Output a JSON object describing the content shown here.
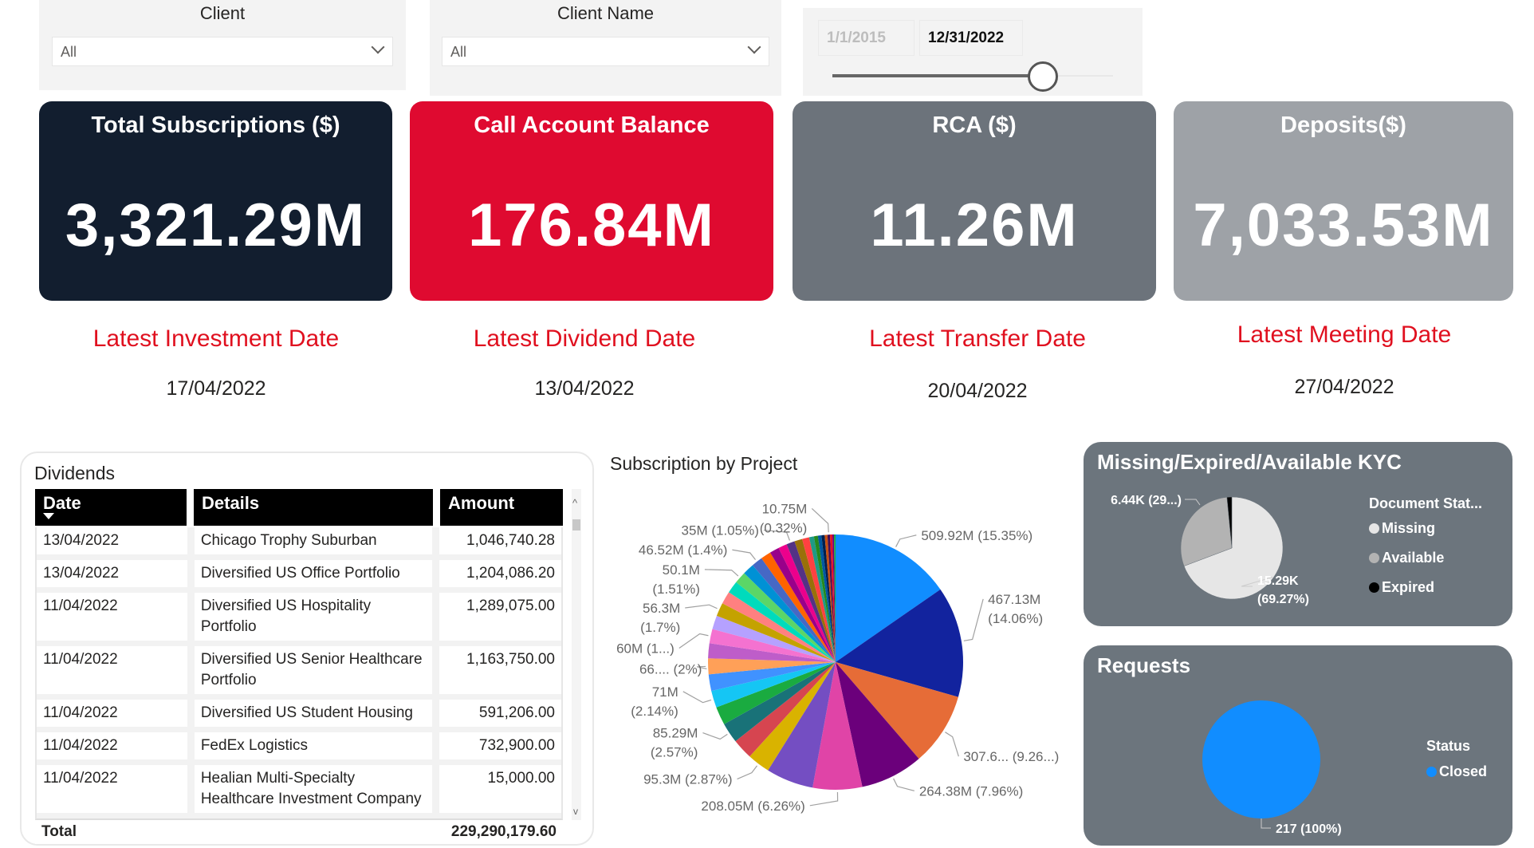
{
  "filters": {
    "client": {
      "label": "Client",
      "value": "All"
    },
    "client_name": {
      "label": "Client Name",
      "value": "All"
    },
    "date_range": {
      "start": "1/1/2015",
      "end": "12/31/2022",
      "slider_position_fraction": 0.75
    }
  },
  "kpis": [
    {
      "title": "Total Subscriptions ($)",
      "value": "3,321.29M",
      "color": "#121E2F"
    },
    {
      "title": "Call Account Balance",
      "value": "176.84M",
      "color": "#DF0A30"
    },
    {
      "title": "RCA ($)",
      "value": "11.26M",
      "color": "#6C737B"
    },
    {
      "title": "Deposits($)",
      "value": "7,033.53M",
      "color": "#9EA2A7"
    }
  ],
  "dates": [
    {
      "label": "Latest Investment Date",
      "value": "17/04/2022"
    },
    {
      "label": "Latest Dividend Date",
      "value": "13/04/2022"
    },
    {
      "label": "Latest Transfer Date",
      "value": "20/04/2022"
    },
    {
      "label": "Latest Meeting Date",
      "value": "27/04/2022"
    }
  ],
  "dividends": {
    "title": "Dividends",
    "columns": [
      "Date",
      "Details",
      "Amount"
    ],
    "rows": [
      [
        "13/04/2022",
        "Chicago Trophy Suburban",
        "1,046,740.28"
      ],
      [
        "13/04/2022",
        "Diversified US Office Portfolio",
        "1,204,086.20"
      ],
      [
        "11/04/2022",
        "Diversified US Hospitality Portfolio",
        "1,289,075.00"
      ],
      [
        "11/04/2022",
        "Diversified US Senior Healthcare Portfolio",
        "1,163,750.00"
      ],
      [
        "11/04/2022",
        "Diversified US Student Housing",
        "591,206.00"
      ],
      [
        "11/04/2022",
        "FedEx Logistics",
        "732,900.00"
      ],
      [
        "11/04/2022",
        "Healian Multi-Specialty Healthcare Investment Company",
        "15,000.00"
      ]
    ],
    "total_label": "Total",
    "total_value": "229,290,179.60"
  },
  "chart_data": [
    {
      "type": "pie",
      "title": "Subscription by Project",
      "unit": "M",
      "slices": [
        {
          "value": 509.92,
          "pct": 15.35,
          "label": [
            "509.92M (15.35%)"
          ],
          "color": "#118DFF"
        },
        {
          "value": 467.13,
          "pct": 14.06,
          "label": [
            "467.13M",
            "(14.06%)"
          ],
          "color": "#12239E"
        },
        {
          "value": 307.6,
          "pct": 9.26,
          "label": [
            "307.6... (9.26...)"
          ],
          "color": "#E66C37"
        },
        {
          "value": 264.38,
          "pct": 7.96,
          "label": [
            "264.38M (7.96%)"
          ],
          "color": "#6B007B"
        },
        {
          "value": 208.05,
          "pct": 6.26,
          "label": [
            "208.05M (6.26%)"
          ],
          "color": "#E044A7"
        },
        {
          "value": 199,
          "pct": 6.0,
          "color": "#744EC2"
        },
        {
          "value": 95.3,
          "pct": 2.87,
          "label": [
            "95.3M (2.87%)"
          ],
          "color": "#D9B300"
        },
        {
          "value": 86,
          "pct": 2.6,
          "color": "#D64550"
        },
        {
          "value": 85.29,
          "pct": 2.57,
          "label": [
            "85.29M",
            "(2.57%)"
          ],
          "color": "#197278"
        },
        {
          "value": 76,
          "pct": 2.3,
          "color": "#1AAB40"
        },
        {
          "value": 71,
          "pct": 2.14,
          "label": [
            "71M",
            "(2.14%)"
          ],
          "color": "#15C6F4"
        },
        {
          "value": 70,
          "pct": 2.1,
          "color": "#4092FF"
        },
        {
          "value": 66,
          "pct": 2.0,
          "label": [
            "66.... (2%)"
          ],
          "color": "#FFA058"
        },
        {
          "value": 63,
          "pct": 1.9,
          "color": "#BE5DC9"
        },
        {
          "value": 60,
          "pct": 1.8,
          "label": [
            "60M (1...)"
          ],
          "color": "#F472D0"
        },
        {
          "value": 58,
          "pct": 1.75,
          "color": "#B5A1FF"
        },
        {
          "value": 56.3,
          "pct": 1.7,
          "label": [
            "56.3M",
            "(1.7%)"
          ],
          "color": "#C4A200"
        },
        {
          "value": 53,
          "pct": 1.6,
          "color": "#FF8080"
        },
        {
          "value": 51,
          "pct": 1.55,
          "color": "#00DBBC"
        },
        {
          "value": 50.1,
          "pct": 1.51,
          "label": [
            "50.1M",
            "(1.51%)"
          ],
          "color": "#5BD667"
        },
        {
          "value": 48,
          "pct": 1.45,
          "color": "#0091D5"
        },
        {
          "value": 46.52,
          "pct": 1.4,
          "label": [
            "46.52M (1.4%)"
          ],
          "color": "#4668C5"
        },
        {
          "value": 43,
          "pct": 1.3,
          "color": "#FF6300"
        },
        {
          "value": 40,
          "pct": 1.2,
          "color": "#99008A"
        },
        {
          "value": 37,
          "pct": 1.1,
          "color": "#EC008C"
        },
        {
          "value": 35,
          "pct": 1.05,
          "label": [
            "35M (1.05%)"
          ],
          "color": "#533285"
        },
        {
          "value": 33,
          "pct": 1.0,
          "color": "#99700A"
        },
        {
          "value": 30,
          "pct": 0.9,
          "color": "#FF4141"
        },
        {
          "value": 20,
          "pct": 0.6,
          "color": "#1F9A85"
        },
        {
          "value": 17,
          "pct": 0.5,
          "color": "#25891C"
        },
        {
          "value": 15,
          "pct": 0.45,
          "color": "#0057A2"
        },
        {
          "value": 13,
          "pct": 0.4,
          "color": "#002050"
        },
        {
          "value": 12,
          "pct": 0.35,
          "color": "#C94F0F"
        },
        {
          "value": 10.75,
          "pct": 0.32,
          "label": [
            "10.75M",
            "(0.32%)"
          ],
          "color": "#450F54"
        },
        {
          "value": 10,
          "pct": 0.3,
          "color": "#E81123"
        },
        {
          "value": 7,
          "pct": 0.2,
          "color": "#6B007B"
        },
        {
          "value": 7,
          "pct": 0.2,
          "color": "#1AAB40"
        }
      ]
    },
    {
      "type": "pie",
      "title": "Missing/Expired/Available KYC",
      "legend_title": "Document Stat...",
      "legend_position": "right",
      "slices": [
        {
          "name": "Missing",
          "pct": 69.27,
          "label": [
            "15.29K",
            "(69.27%)"
          ],
          "color": "#E6E6E6"
        },
        {
          "name": "Available",
          "pct": 29.2,
          "label": [
            "6.44K (29...)"
          ],
          "color": "#B3B3B3"
        },
        {
          "name": "Expired",
          "pct": 1.53,
          "color": "#000000"
        }
      ]
    },
    {
      "type": "pie",
      "title": "Requests",
      "legend_title": "Status",
      "legend_position": "right",
      "slices": [
        {
          "name": "Closed",
          "pct": 100,
          "label": [
            "217 (100%)"
          ],
          "color": "#118DFF"
        }
      ]
    }
  ]
}
